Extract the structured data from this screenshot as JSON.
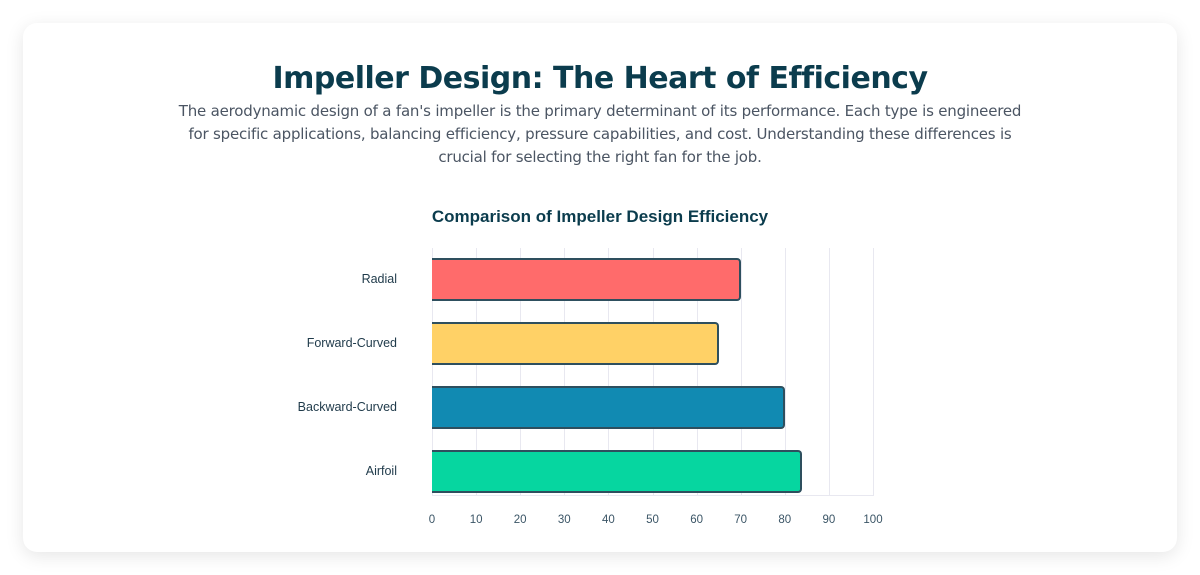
{
  "page": {
    "title": "Impeller Design: The Heart of Efficiency",
    "description": "The aerodynamic design of a fan's impeller is the primary determinant of its performance. Each type is engineered for specific applications, balancing efficiency, pressure capabilities, and cost. Understanding these differences is crucial for selecting the right fan for the job."
  },
  "chart_data": {
    "type": "bar",
    "orientation": "horizontal",
    "title": "Comparison of Impeller Design Efficiency",
    "categories": [
      "Radial",
      "Forward-Curved",
      "Backward-Curved",
      "Airfoil"
    ],
    "values": [
      70,
      65,
      80,
      84
    ],
    "colors": [
      "#ff6b6b",
      "#ffd166",
      "#118ab2",
      "#06d6a0"
    ],
    "border_color": "#2e4f5e",
    "xlabel": "",
    "ylabel": "",
    "xlim": [
      0,
      100
    ],
    "xticks": [
      "0",
      "10",
      "20",
      "30",
      "40",
      "50",
      "60",
      "70",
      "80",
      "90",
      "100"
    ],
    "grid": true,
    "legend": false
  }
}
